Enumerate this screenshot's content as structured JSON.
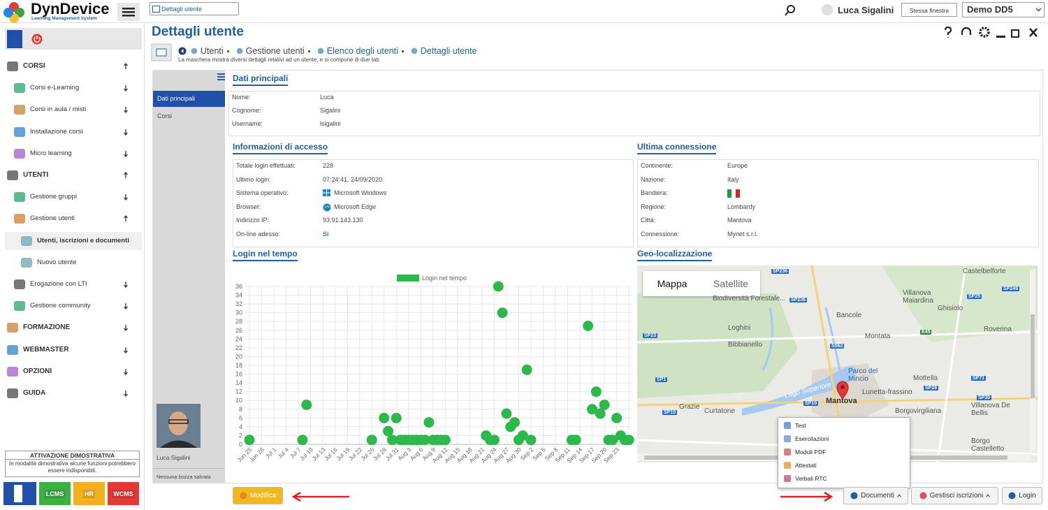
{
  "app": {
    "logo": "DynDevice",
    "logo_subtitle": "Learning Management System",
    "tab": "Dettagli utente",
    "user": "Luca Sigalini",
    "window_select": "Stessa finestra",
    "instance": "Demo DD5"
  },
  "sidebar": {
    "menu": [
      {
        "label": "CORSI",
        "level": 0,
        "expanded": true
      },
      {
        "label": "Corsi e-Learning",
        "level": 1,
        "expanded": false
      },
      {
        "label": "Corsi in aula / misti",
        "level": 1,
        "expanded": false
      },
      {
        "label": "Installazione corsi",
        "level": 1,
        "expanded": false
      },
      {
        "label": "Micro learning",
        "level": 1,
        "expanded": false
      },
      {
        "label": "UTENTI",
        "level": 0,
        "expanded": true
      },
      {
        "label": "Gestione gruppi",
        "level": 1,
        "expanded": false
      },
      {
        "label": "Gestione utenti",
        "level": 1,
        "expanded": true
      },
      {
        "label": "Utenti, iscrizioni e documenti",
        "level": 2,
        "active": true
      },
      {
        "label": "Nuovo utente",
        "level": 2
      },
      {
        "label": "Erogazione con LTI",
        "level": 1,
        "expanded": false
      },
      {
        "label": "Gestione community",
        "level": 1,
        "expanded": false
      },
      {
        "label": "FORMAZIONE",
        "level": 0,
        "expanded": false
      },
      {
        "label": "WEBMASTER",
        "level": 0,
        "expanded": false
      },
      {
        "label": "OPZIONI",
        "level": 0,
        "expanded": false
      },
      {
        "label": "GUIDA",
        "level": 0,
        "expanded": false
      }
    ],
    "notice_title": "ATTIVAZIONE DIMOSTRATIVA",
    "notice_text": "In modalità dimostrativa alcune funzioni potrebbero essere indisponibili.",
    "products": [
      "LCMS",
      "HR",
      "WCMS"
    ]
  },
  "page": {
    "title": "Dettagli utente",
    "breadcrumb": [
      "Utenti",
      "Gestione utenti",
      "Elenco degli utenti",
      "Dettagli utente"
    ],
    "description": "La maschera mostra diversi dettagli relativi ad un utente, e si compone di due tab.",
    "tabs": [
      "Dati principali",
      "Corsi"
    ],
    "photo_caption": "Luca Sigalini",
    "draft_status": "Nessuna bozza salvata"
  },
  "dati_principali": {
    "title": "Dati principali",
    "rows": [
      [
        "Nome:",
        "Luca"
      ],
      [
        "Cognome:",
        "Sigalini"
      ],
      [
        "Username:",
        "lsigalini"
      ]
    ]
  },
  "accesso": {
    "title": "Informazioni di accesso",
    "rows": [
      [
        "Totale login effettuati:",
        "228"
      ],
      [
        "Ultimo login:",
        "07:24:41, 24/09/2020"
      ],
      [
        "Sistema operativo:",
        "Microsoft Windows"
      ],
      [
        "Browser:",
        "Microsoft Edge"
      ],
      [
        "Indirizzo IP:",
        "93.91.143.130"
      ],
      [
        "On-line adesso:",
        "Si"
      ]
    ]
  },
  "connessione": {
    "title": "Ultima connessione",
    "rows": [
      [
        "Continente:",
        "Europe"
      ],
      [
        "Nazione:",
        "Italy"
      ],
      [
        "Bandiera:",
        null
      ],
      [
        "Regione:",
        "Lombardy"
      ],
      [
        "Città:",
        "Mantova"
      ],
      [
        "Connessione:",
        "Mynet s.r.l."
      ]
    ]
  },
  "login_chart": {
    "type": "scatter",
    "title": "Login nel tempo",
    "legend": "Login nel tempo",
    "color": "#2db84b",
    "categories": [
      "Jun 25",
      null,
      null,
      "Jun 28",
      null,
      null,
      "Jul 1",
      null,
      null,
      "Jul 4",
      null,
      null,
      "Jul 7",
      null,
      null,
      "Jul 10",
      null,
      null,
      "Jul 13",
      null,
      null,
      "Jul 16",
      null,
      null,
      "Jul 19",
      null,
      null,
      "Jul 22",
      null,
      null,
      "Jul 25",
      null,
      null,
      "Jul 28",
      null,
      null,
      "Jul 31",
      null,
      null,
      "Aug 3",
      null,
      null,
      "Aug 6",
      null,
      null,
      "Aug 9",
      null,
      null,
      "Aug 12",
      null,
      null,
      "Aug 15",
      null,
      null,
      "Aug 18",
      null,
      null,
      "Aug 21",
      null,
      null,
      "Aug 24",
      null,
      null,
      "Aug 27",
      null,
      null,
      "Aug 30",
      null,
      null,
      "Sep 2",
      null,
      null,
      "Sep 5",
      null,
      null,
      "Sep 8",
      null,
      null,
      "Sep 11",
      null,
      null,
      "Sep 14",
      null,
      null,
      "Sep 17",
      null,
      null,
      "Sep 20",
      null,
      null,
      "Sep 23",
      null,
      null,
      null
    ],
    "values": [
      1,
      null,
      null,
      null,
      null,
      null,
      null,
      null,
      null,
      null,
      null,
      null,
      null,
      1,
      9,
      null,
      null,
      null,
      null,
      null,
      null,
      null,
      null,
      null,
      null,
      null,
      null,
      null,
      null,
      null,
      1,
      null,
      null,
      6,
      3,
      1,
      6,
      1,
      1,
      1,
      1,
      1,
      1,
      1,
      5,
      1,
      1,
      1,
      1,
      null,
      null,
      null,
      null,
      null,
      null,
      null,
      null,
      null,
      2,
      1,
      1,
      36,
      30,
      7,
      4,
      5,
      1,
      2,
      17,
      1,
      null,
      null,
      null,
      null,
      null,
      null,
      null,
      null,
      null,
      1,
      1,
      null,
      null,
      27,
      8,
      12,
      7,
      9,
      1,
      1,
      6,
      2,
      1,
      1
    ],
    "ylim": [
      0,
      36
    ],
    "yticks": [
      0,
      2,
      4,
      6,
      8,
      10,
      12,
      14,
      16,
      18,
      20,
      22,
      24,
      26,
      28,
      30,
      32,
      34,
      36
    ],
    "grid": true
  },
  "geo": {
    "title": "Geo-localizzazione",
    "map_buttons": [
      "Mappa",
      "Satellite"
    ],
    "labels": [
      "Castelbelforte",
      "Villanova Maiardina",
      "Ghisiolo",
      "Biodiversità Forestale...",
      "Bancole",
      "Loghini",
      "Montata",
      "Roverina",
      "Bibbianello",
      "Parco del Mincio",
      "Mottella",
      "Lago Superiore",
      "Mantova",
      "Lunetta-frassino",
      "Grazie",
      "Curtatone",
      "Borgovirgiliana",
      "Villanova De Bellis",
      "Borgo Castelletto"
    ],
    "road_shields": [
      "SP236",
      "SP249",
      "SP25",
      "SP236",
      "SP23",
      "S562",
      "E45",
      "SP1",
      "SP28",
      "SP71",
      "SP10",
      "SP10",
      "SP30"
    ]
  },
  "documents_menu": [
    "Test",
    "Esercitazioni",
    "Moduli PDF",
    "Attestati",
    "Verbali RTC"
  ],
  "footer_buttons": [
    "Modifica",
    "Documenti",
    "Gestisci iscrizioni",
    "Login"
  ]
}
